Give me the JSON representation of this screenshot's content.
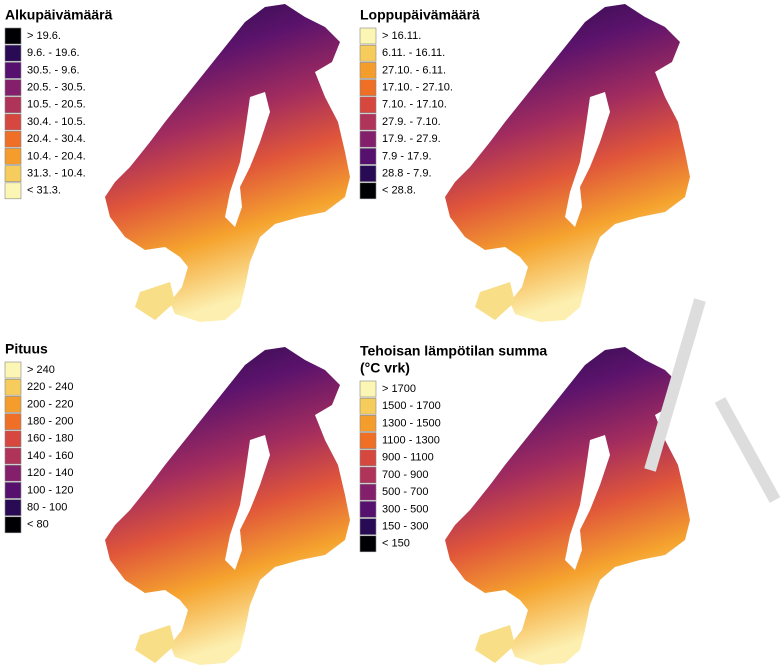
{
  "panels": [
    {
      "title": "Alkupäivämäärä",
      "legend": [
        {
          "label": "> 19.6.",
          "color": "#000004"
        },
        {
          "label": "9.6. - 19.6.",
          "color": "#280b54"
        },
        {
          "label": "30.5. - 9.6.",
          "color": "#56106e"
        },
        {
          "label": "20.5. - 30.5.",
          "color": "#84206b"
        },
        {
          "label": "10.5. - 20.5.",
          "color": "#b0345a"
        },
        {
          "label": "30.4. - 10.5.",
          "color": "#d6483f"
        },
        {
          "label": "20.4. - 30.4.",
          "color": "#ef6f27"
        },
        {
          "label": "10.4. - 20.4.",
          "color": "#f59d2c"
        },
        {
          "label": "31.3. - 10.4.",
          "color": "#f6cd5c"
        },
        {
          "label": "< 31.3.",
          "color": "#fcf6b4"
        }
      ]
    },
    {
      "title": "Loppupäivämäärä",
      "legend": [
        {
          "label": "> 16.11.",
          "color": "#fcf6b4"
        },
        {
          "label": "6.11. - 16.11.",
          "color": "#f6cd5c"
        },
        {
          "label": "27.10. - 6.11.",
          "color": "#f59d2c"
        },
        {
          "label": "17.10. - 27.10.",
          "color": "#ef6f27"
        },
        {
          "label": "7.10. - 17.10.",
          "color": "#d6483f"
        },
        {
          "label": "27.9. - 7.10.",
          "color": "#b0345a"
        },
        {
          "label": "17.9. - 27.9.",
          "color": "#84206b"
        },
        {
          "label": "7.9 - 17.9.",
          "color": "#56106e"
        },
        {
          "label": "28.8 - 7.9.",
          "color": "#280b54"
        },
        {
          "label": "< 28.8.",
          "color": "#000004"
        }
      ]
    },
    {
      "title": "Pituus",
      "legend": [
        {
          "label": "> 240",
          "color": "#fcf6b4"
        },
        {
          "label": "220 - 240",
          "color": "#f6cd5c"
        },
        {
          "label": "200 - 220",
          "color": "#f59d2c"
        },
        {
          "label": "180 - 200",
          "color": "#ef6f27"
        },
        {
          "label": "160 - 180",
          "color": "#d6483f"
        },
        {
          "label": "140 - 160",
          "color": "#b0345a"
        },
        {
          "label": "120 - 140",
          "color": "#84206b"
        },
        {
          "label": "100 - 120",
          "color": "#56106e"
        },
        {
          "label": "80 - 100",
          "color": "#280b54"
        },
        {
          "label": "< 80",
          "color": "#000004"
        }
      ]
    },
    {
      "title": "Tehoisan lämpötilan summa",
      "subtitle": "(°C vrk)",
      "legend": [
        {
          "label": "> 1700",
          "color": "#fcf6b4"
        },
        {
          "label": "1500 - 1700",
          "color": "#f6cd5c"
        },
        {
          "label": "1300 - 1500",
          "color": "#f59d2c"
        },
        {
          "label": "1100 - 1300",
          "color": "#ef6f27"
        },
        {
          "label": "900 - 1100",
          "color": "#d6483f"
        },
        {
          "label": "700 - 900",
          "color": "#b0345a"
        },
        {
          "label": "500 - 700",
          "color": "#84206b"
        },
        {
          "label": "300 - 500",
          "color": "#56106e"
        },
        {
          "label": "150 - 300",
          "color": "#280b54"
        },
        {
          "label": "< 150",
          "color": "#000004"
        }
      ]
    }
  ]
}
